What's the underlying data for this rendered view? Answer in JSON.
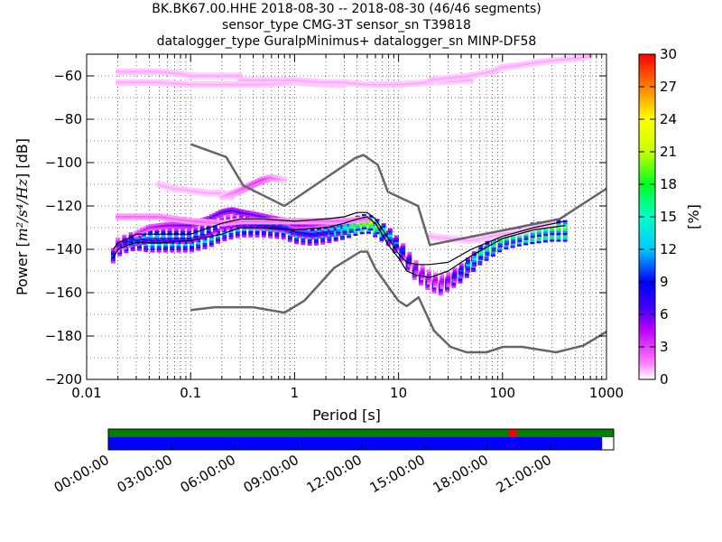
{
  "header": {
    "title_line1": "BK.BK67.00.HHE   2018-08-30 -- 2018-08-30  (46/46 segments)",
    "title_line2": "sensor_type CMG-3T sensor_sn T39818",
    "title_line3": "datalogger_type GuralpMinimus+ datalogger_sn MINP-DF58"
  },
  "chart_data": [
    {
      "type": "heatmap",
      "name": "probabilistic-power-spectral-density",
      "xlabel": "Period [s]",
      "ylabel": "Power [m²/s⁴/Hz] [dB]",
      "ylabel_parts": {
        "prefix": "Power [",
        "expr": "m²/s⁴/Hz",
        "suffix": "] [dB]"
      },
      "x_scale": "log",
      "xlim": [
        0.01,
        1000
      ],
      "ylim": [
        -200,
        -50
      ],
      "x_ticks": [
        0.01,
        0.1,
        1,
        10,
        100,
        1000
      ],
      "x_tick_labels": [
        "0.01",
        "0.1",
        "1",
        "10",
        "100",
        "1000"
      ],
      "y_ticks": [
        -200,
        -180,
        -160,
        -140,
        -120,
        -100,
        -80,
        -60
      ],
      "y_tick_labels": [
        "−200",
        "−180",
        "−160",
        "−140",
        "−120",
        "−100",
        "−80",
        "−60"
      ],
      "grid": "dotted",
      "colormap": "pqlx",
      "colorbar": {
        "label": "[%]",
        "range": [
          0,
          30
        ],
        "ticks": [
          0,
          3,
          6,
          9,
          12,
          15,
          18,
          21,
          24,
          27,
          30
        ],
        "tick_labels": [
          "0",
          "3",
          "6",
          "9",
          "12",
          "15",
          "18",
          "21",
          "24",
          "27",
          "30"
        ]
      },
      "bands": [
        {
          "x": [
            0.018,
            0.02,
            0.025,
            0.03,
            0.04,
            0.06,
            0.1,
            0.15,
            0.2,
            0.3,
            0.5,
            0.8,
            1,
            1.5,
            2,
            3,
            4,
            5,
            6,
            8,
            10,
            12,
            15,
            20,
            25,
            30,
            40,
            50,
            60,
            80,
            100,
            150,
            200,
            300,
            400
          ],
          "y": [
            -143,
            -140,
            -138,
            -137,
            -138,
            -138,
            -138,
            -136,
            -133,
            -131,
            -131,
            -132,
            -134,
            -135,
            -134,
            -132,
            -130,
            -129,
            -131,
            -135,
            -140,
            -146,
            -152,
            -156,
            -158,
            -156,
            -152,
            -148,
            -144,
            -140,
            -137,
            -135,
            -134,
            -133,
            -133
          ],
          "pct": [
            10,
            12,
            13,
            13,
            13,
            12,
            12,
            13,
            13,
            12,
            12,
            12,
            13,
            12,
            12,
            18,
            22,
            25,
            20,
            14,
            12,
            10,
            8,
            8,
            8,
            10,
            13,
            16,
            18,
            20,
            20,
            22,
            23,
            22,
            22
          ]
        },
        {
          "x": [
            0.02,
            0.025,
            0.03,
            0.04,
            0.06,
            0.1,
            0.15,
            0.2,
            0.3,
            0.5,
            0.8,
            1,
            1.5,
            2,
            3,
            4,
            5,
            6,
            8,
            10,
            12,
            15,
            20,
            25,
            30,
            40,
            50,
            60,
            80,
            100,
            150,
            200,
            300,
            400
          ],
          "y": [
            -138,
            -136,
            -135,
            -134,
            -134,
            -134,
            -131,
            -128,
            -127,
            -128,
            -129,
            -131,
            -132,
            -131,
            -130,
            -128,
            -127,
            -129,
            -133,
            -138,
            -143,
            -149,
            -153,
            -155,
            -154,
            -150,
            -146,
            -142,
            -138,
            -135,
            -133,
            -131,
            -130,
            -130
          ],
          "pct": [
            6,
            9,
            11,
            13,
            12,
            11,
            10,
            8,
            9,
            9,
            10,
            11,
            11,
            12,
            15,
            22,
            27,
            22,
            14,
            11,
            9,
            6,
            5,
            5,
            6,
            10,
            14,
            16,
            18,
            18,
            19,
            20,
            20,
            20
          ]
        },
        {
          "x": [
            0.03,
            0.04,
            0.06,
            0.1,
            0.15,
            0.2,
            0.25,
            0.3,
            0.4,
            0.5,
            0.8,
            1,
            1.5,
            2,
            3
          ],
          "y": [
            -133,
            -130,
            -129,
            -129,
            -126,
            -123,
            -122,
            -123,
            -124,
            -125,
            -127,
            -129,
            -129,
            -128,
            -127
          ],
          "pct": [
            3,
            4,
            5,
            6,
            6,
            7,
            7,
            7,
            6,
            6,
            5,
            5,
            4,
            4,
            4
          ]
        },
        {
          "x": [
            0.02,
            0.03,
            0.05,
            0.1,
            0.2,
            0.3,
            0.5,
            1,
            2,
            3,
            5
          ],
          "y": [
            -125,
            -125,
            -125,
            -127,
            -128,
            -127,
            -127,
            -127,
            -127,
            -127,
            -126
          ],
          "pct": [
            2,
            2,
            2,
            2,
            2,
            2,
            2,
            2,
            2,
            2,
            2
          ]
        },
        {
          "x": [
            0.02,
            0.03,
            0.05,
            0.08,
            0.1,
            0.15,
            0.2,
            0.3
          ],
          "y": [
            -58,
            -58,
            -58,
            -59,
            -60,
            -60,
            -60,
            -60
          ],
          "pct": [
            1,
            1,
            1,
            1,
            1,
            1,
            1,
            1
          ]
        },
        {
          "x": [
            0.02,
            0.03,
            0.05,
            0.1,
            0.2,
            0.3,
            0.5,
            1,
            2,
            3
          ],
          "y": [
            -63,
            -63,
            -63,
            -64,
            -64,
            -64,
            -64,
            -63,
            -64,
            -64
          ],
          "pct": [
            1,
            1,
            1,
            1,
            1,
            1,
            1,
            1,
            1,
            1
          ]
        },
        {
          "x": [
            0.3,
            0.5,
            1,
            2,
            3,
            5,
            10,
            20,
            50
          ],
          "y": [
            -62,
            -62,
            -62,
            -63,
            -63,
            -64,
            -64,
            -63,
            -62
          ],
          "pct": [
            1,
            1,
            1,
            1,
            1,
            1,
            1,
            1,
            1
          ]
        },
        {
          "x": [
            20,
            30,
            50,
            80,
            100,
            150,
            200,
            300,
            500,
            700
          ],
          "y": [
            -62,
            -61,
            -60,
            -58,
            -56,
            -55,
            -54,
            -53,
            -52,
            -51
          ],
          "pct": [
            1,
            1,
            1,
            1,
            1,
            1,
            1,
            1,
            1,
            1
          ]
        },
        {
          "x": [
            0.05,
            0.07,
            0.1,
            0.15,
            0.2,
            0.25
          ],
          "y": [
            -110,
            -112,
            -113,
            -114,
            -114,
            -116
          ],
          "pct": [
            1,
            1,
            1,
            1,
            1,
            1
          ]
        },
        {
          "x": [
            0.2,
            0.3,
            0.4,
            0.5,
            0.6,
            0.8
          ],
          "y": [
            -116,
            -113,
            -110,
            -108,
            -107,
            -108
          ],
          "pct": [
            1,
            2,
            3,
            3,
            2,
            1
          ]
        },
        {
          "x": [
            20,
            30,
            50,
            80,
            100,
            150,
            200,
            300
          ],
          "y": [
            -134,
            -135,
            -136,
            -134,
            -133,
            -132,
            -130,
            -128
          ],
          "pct": [
            1,
            1,
            1,
            1,
            1,
            1,
            1,
            1
          ]
        }
      ],
      "mean_curve": {
        "x": [
          0.018,
          0.02,
          0.025,
          0.03,
          0.05,
          0.1,
          0.2,
          0.3,
          0.5,
          1,
          2,
          3,
          4,
          5,
          6,
          8,
          10,
          12,
          15,
          20,
          30,
          50,
          100,
          200,
          400
        ],
        "y": [
          -140,
          -137,
          -135,
          -133,
          -133,
          -133,
          -128,
          -126,
          -126,
          -127,
          -126,
          -125,
          -123,
          -123,
          -126,
          -135,
          -142,
          -146,
          -147,
          -147,
          -146,
          -140,
          -134,
          -130,
          -127
        ]
      },
      "mode_curve": {
        "x": [
          0.018,
          0.02,
          0.025,
          0.03,
          0.05,
          0.1,
          0.2,
          0.3,
          0.5,
          1,
          2,
          3,
          4,
          5,
          6,
          8,
          10,
          12,
          15,
          20,
          30,
          50,
          100,
          200,
          400
        ],
        "y": [
          -144,
          -140,
          -138,
          -137,
          -137,
          -136,
          -133,
          -130,
          -130,
          -131,
          -130,
          -128,
          -126,
          -125,
          -128,
          -138,
          -144,
          -150,
          -152,
          -153,
          -150,
          -143,
          -135,
          -131,
          -129
        ]
      },
      "nhnm": {
        "x": [
          0.1,
          0.22,
          0.32,
          0.8,
          3.8,
          4.6,
          6.3,
          7.9,
          15.4,
          20,
          354.8,
          1000
        ],
        "y": [
          -91.5,
          -97.4,
          -110.5,
          -120,
          -98,
          -96.5,
          -101,
          -113.5,
          -120,
          -138,
          -126,
          -112
        ]
      },
      "nlnm": {
        "x": [
          0.1,
          0.17,
          0.4,
          0.8,
          1.24,
          2.4,
          4.3,
          5,
          6,
          10,
          12,
          15.6,
          21.9,
          31.6,
          45,
          70,
          101,
          154,
          328,
          600,
          1000
        ],
        "y": [
          -168,
          -166.7,
          -166.7,
          -169.2,
          -163.7,
          -148.6,
          -141.1,
          -141.1,
          -149,
          -163.8,
          -166.2,
          -162.1,
          -177.5,
          -185,
          -187.5,
          -187.5,
          -185,
          -185,
          -187.5,
          -184.4,
          -178
        ]
      }
    },
    {
      "type": "timeline",
      "name": "data-coverage",
      "x_range_hours": [
        0,
        24
      ],
      "x_tick_labels": [
        "00:00:00",
        "03:00:00",
        "06:00:00",
        "09:00:00",
        "12:00:00",
        "15:00:00",
        "18:00:00",
        "21:00:00"
      ],
      "x_tick_hours": [
        0,
        3,
        6,
        9,
        12,
        15,
        18,
        21
      ],
      "coverage_color": "#008000",
      "gap_color": "#ff0000",
      "gaps_hours": [
        [
          19,
          19.4
        ]
      ],
      "psd_color": "#0000ff",
      "psd_hours": [
        [
          0,
          23.45
        ]
      ]
    }
  ]
}
